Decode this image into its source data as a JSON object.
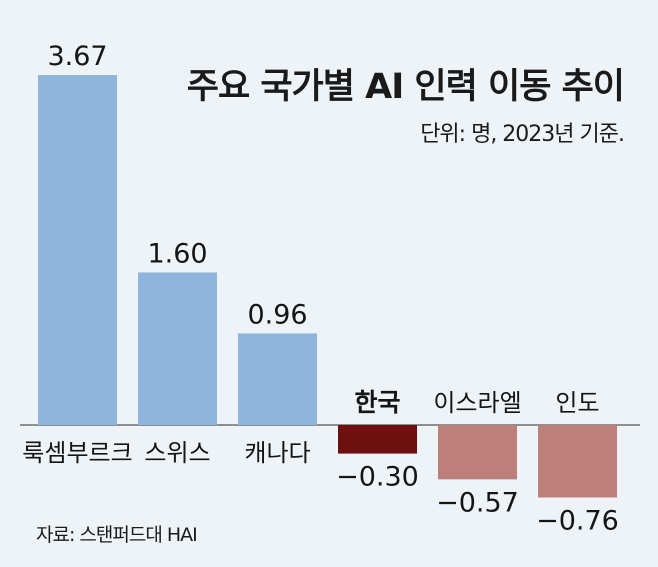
{
  "header": {
    "title": "주요 국가별 AI 인력 이동 추이",
    "unit_note": "단위: 명, 2023년 기준."
  },
  "footer": {
    "source": "자료: 스탠퍼드대 HAI"
  },
  "colors": {
    "positive": "#8fb5dc",
    "negative": "#bd7f7a",
    "highlight": "#6e1010",
    "background": "#edf3f7"
  },
  "chart_data": {
    "type": "bar",
    "title": "주요 국가별 AI 인력 이동 추이",
    "categories": [
      "룩셈부르크",
      "스위스",
      "캐나다",
      "한국",
      "이스라엘",
      "인도"
    ],
    "values": [
      3.67,
      1.6,
      0.96,
      -0.3,
      -0.57,
      -0.76
    ],
    "value_labels": [
      "3.67",
      "1.60",
      "0.96",
      "−0.30",
      "−0.57",
      "−0.76"
    ],
    "highlight_category": "한국",
    "ylim": [
      -0.76,
      3.67
    ],
    "grid": false,
    "legend": "none"
  }
}
